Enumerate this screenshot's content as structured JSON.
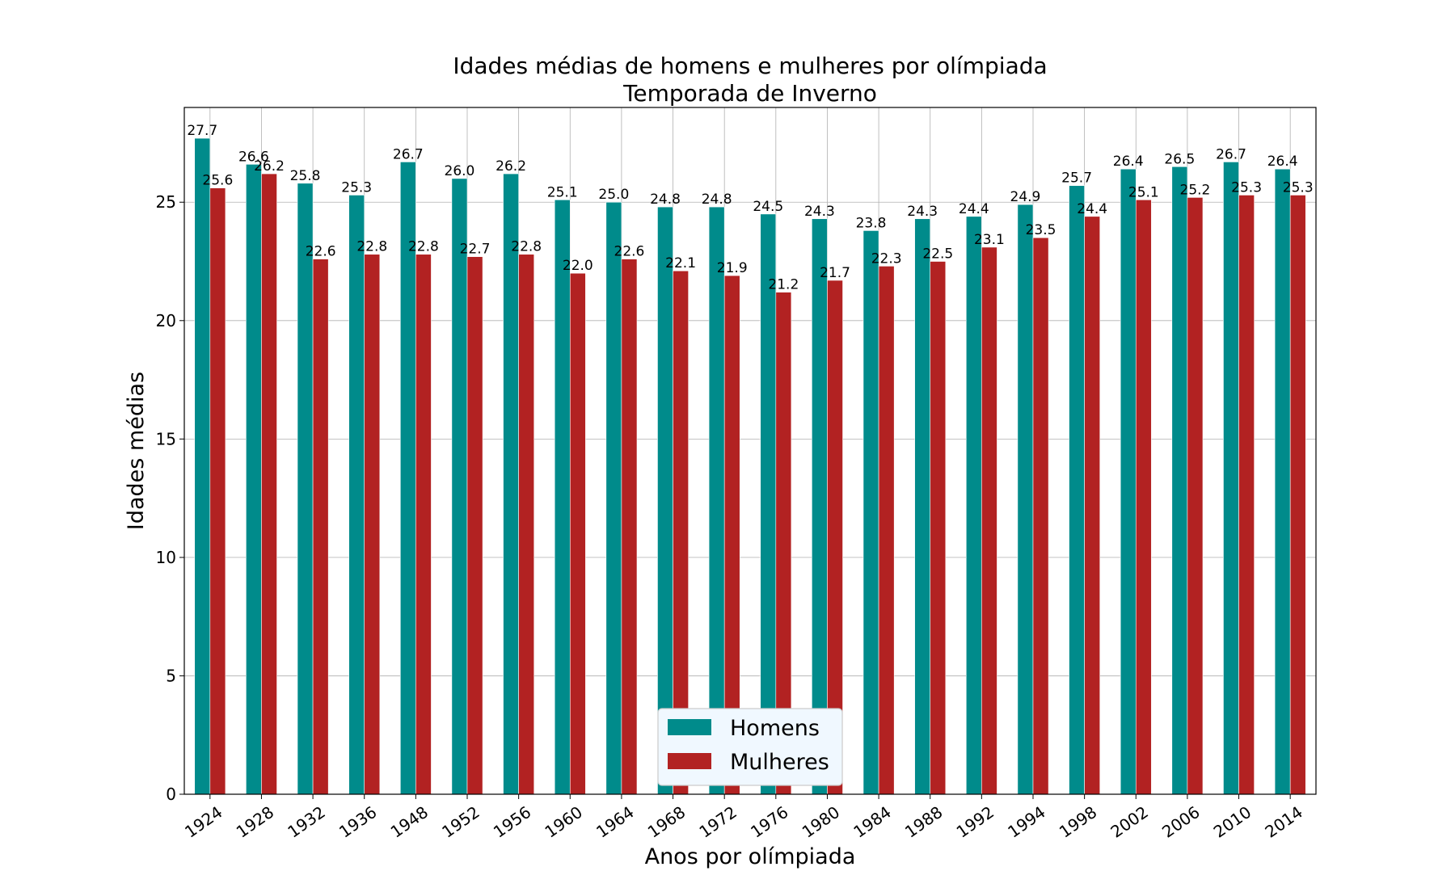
{
  "chart_data": {
    "type": "bar",
    "title": "Idades médias de homens e mulheres por olímpiada",
    "subtitle": "Temporada de Inverno",
    "xlabel": "Anos por olímpiada",
    "ylabel": "Idades médias",
    "categories": [
      "1924",
      "1928",
      "1932",
      "1936",
      "1948",
      "1952",
      "1956",
      "1960",
      "1964",
      "1968",
      "1972",
      "1976",
      "1980",
      "1984",
      "1988",
      "1992",
      "1994",
      "1998",
      "2002",
      "2006",
      "2010",
      "2014"
    ],
    "series": [
      {
        "name": "Homens",
        "color": "#008b8b",
        "values": [
          27.7,
          26.6,
          25.8,
          25.3,
          26.7,
          26.0,
          26.2,
          25.1,
          25.0,
          24.8,
          24.8,
          24.5,
          24.3,
          23.8,
          24.3,
          24.4,
          24.9,
          25.7,
          26.4,
          26.5,
          26.7,
          26.4
        ]
      },
      {
        "name": "Mulheres",
        "color": "#b22222",
        "values": [
          25.6,
          26.2,
          22.6,
          22.8,
          22.8,
          22.7,
          22.8,
          22.0,
          22.6,
          22.1,
          21.9,
          21.2,
          21.7,
          22.3,
          22.5,
          23.1,
          23.5,
          24.4,
          25.1,
          25.2,
          25.3,
          25.3
        ]
      }
    ],
    "ylim": [
      0,
      29
    ],
    "yticks": [
      0,
      5,
      10,
      15,
      20,
      25
    ],
    "grid": true,
    "legend_position": "bottom-center",
    "bar_label_decimals": 1
  }
}
